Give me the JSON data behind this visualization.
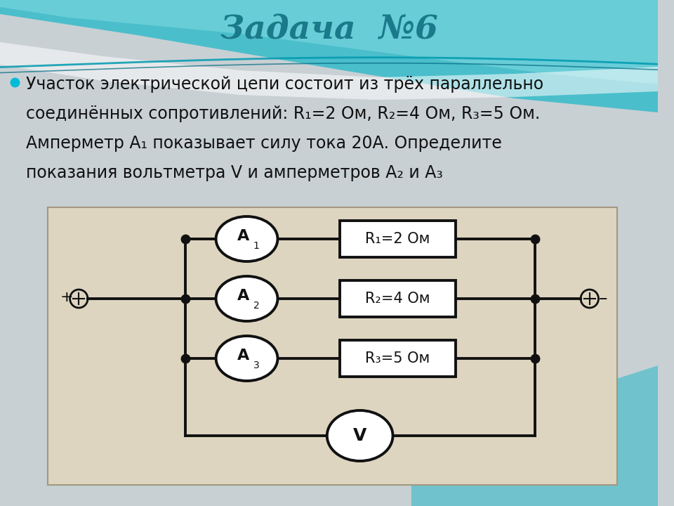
{
  "title": "Задача  №6",
  "title_color": "#1a7a8a",
  "title_fontsize": 34,
  "text_line1": "Участок электрической цепи состоит из трёх параллельно",
  "text_line2": "соединённых сопротивлений: R₁=2 Ом, R₂=4 Ом, R₃=5 Ом.",
  "text_line3": "Амперметр A₁ показывает силу тока 20А. Определите",
  "text_line4": "показания вольтметра V и амперметров A₂ и A₃",
  "text_color": "#111111",
  "bullet_color": "#00bcd4",
  "circuit_bg": "#ddd5c0",
  "circuit_line_color": "#111111",
  "resistors": [
    "R₁=2 Ом",
    "R₂=4 Ом",
    "R₃=5 Ом"
  ],
  "voltmeter": "V",
  "teal_color": "#4bbecb",
  "wave_light": "#e8f4f6",
  "gray_bg": "#c8d0d4"
}
